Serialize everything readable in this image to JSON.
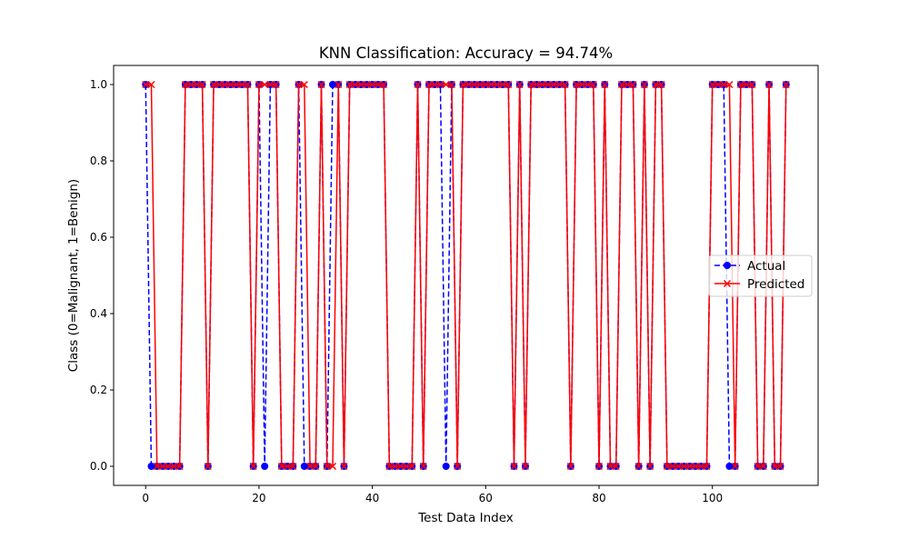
{
  "chart_data": {
    "type": "line",
    "title": "KNN Classification: Accuracy = 94.74%",
    "xlabel": "Test Data Index",
    "ylabel": "Class (0=Malignant, 1=Benign)",
    "xlim": [
      -5.65,
      118.65
    ],
    "ylim": [
      -0.05,
      1.05
    ],
    "xticks": [
      0,
      20,
      40,
      60,
      80,
      100
    ],
    "yticks": [
      0.0,
      0.2,
      0.4,
      0.6,
      0.8,
      1.0
    ],
    "xtick_labels": [
      "0",
      "20",
      "40",
      "60",
      "80",
      "100"
    ],
    "ytick_labels": [
      "0.0",
      "0.2",
      "0.4",
      "0.6",
      "0.8",
      "1.0"
    ],
    "grid": false,
    "legend_position": "center-right",
    "series": [
      {
        "name": "Actual",
        "color": "#0000ff",
        "linestyle": "dashed",
        "marker": "circle",
        "values": [
          1,
          0,
          0,
          0,
          0,
          0,
          0,
          1,
          1,
          1,
          1,
          0,
          1,
          1,
          1,
          1,
          1,
          1,
          1,
          0,
          1,
          0,
          1,
          1,
          0,
          0,
          0,
          1,
          0,
          0,
          0,
          1,
          0,
          1,
          1,
          0,
          1,
          1,
          1,
          1,
          1,
          1,
          1,
          0,
          0,
          0,
          0,
          0,
          1,
          0,
          1,
          1,
          1,
          0,
          1,
          0,
          1,
          1,
          1,
          1,
          1,
          1,
          1,
          1,
          1,
          0,
          1,
          0,
          1,
          1,
          1,
          1,
          1,
          1,
          1,
          0,
          1,
          1,
          1,
          1,
          0,
          1,
          0,
          0,
          1,
          1,
          1,
          0,
          1,
          0,
          1,
          1,
          0,
          0,
          0,
          0,
          0,
          0,
          0,
          0,
          1,
          1,
          1,
          0,
          0,
          1,
          1,
          1,
          0,
          0,
          1,
          0,
          0,
          1
        ]
      },
      {
        "name": "Predicted",
        "color": "#ff0000",
        "linestyle": "solid",
        "marker": "x",
        "values": [
          1,
          1,
          0,
          0,
          0,
          0,
          0,
          1,
          1,
          1,
          1,
          0,
          1,
          1,
          1,
          1,
          1,
          1,
          1,
          0,
          1,
          1,
          1,
          1,
          0,
          0,
          0,
          1,
          1,
          0,
          0,
          1,
          0,
          0,
          1,
          0,
          1,
          1,
          1,
          1,
          1,
          1,
          1,
          0,
          0,
          0,
          0,
          0,
          1,
          0,
          1,
          1,
          1,
          1,
          1,
          0,
          1,
          1,
          1,
          1,
          1,
          1,
          1,
          1,
          1,
          0,
          1,
          0,
          1,
          1,
          1,
          1,
          1,
          1,
          1,
          0,
          1,
          1,
          1,
          1,
          0,
          1,
          0,
          0,
          1,
          1,
          1,
          0,
          1,
          0,
          1,
          1,
          0,
          0,
          0,
          0,
          0,
          0,
          0,
          0,
          1,
          1,
          1,
          1,
          0,
          1,
          1,
          1,
          0,
          0,
          1,
          0,
          0,
          1
        ]
      }
    ]
  }
}
